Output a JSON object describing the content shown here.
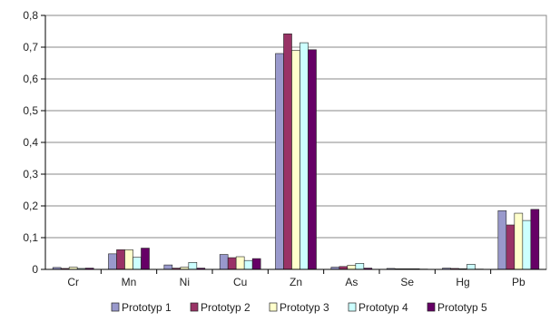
{
  "chart_data": {
    "type": "bar",
    "categories": [
      "Cr",
      "Mn",
      "Ni",
      "Cu",
      "Zn",
      "As",
      "Se",
      "Hg",
      "Pb"
    ],
    "y_ticks": [
      "0",
      "0,1",
      "0,2",
      "0,3",
      "0,4",
      "0,5",
      "0,6",
      "0,7",
      "0,8"
    ],
    "ylim": [
      0,
      0.8
    ],
    "grid": true,
    "legend_position": "bottom",
    "series": [
      {
        "name": "Prototyp 1",
        "color": "#9999cc",
        "values": [
          0.006,
          0.049,
          0.014,
          0.047,
          0.68,
          0.007,
          0.003,
          0.004,
          0.185
        ]
      },
      {
        "name": "Prototyp 2",
        "color": "#993366",
        "values": [
          0.003,
          0.062,
          0.004,
          0.037,
          0.742,
          0.009,
          0.002,
          0.003,
          0.14
        ]
      },
      {
        "name": "Prototyp 3",
        "color": "#ffffcc",
        "values": [
          0.007,
          0.062,
          0.007,
          0.04,
          0.69,
          0.013,
          0.002,
          0.002,
          0.177
        ]
      },
      {
        "name": "Prototyp 4",
        "color": "#ccffff",
        "values": [
          0.003,
          0.038,
          0.022,
          0.028,
          0.714,
          0.019,
          0.002,
          0.016,
          0.154
        ]
      },
      {
        "name": "Prototyp 5",
        "color": "#660066",
        "values": [
          0.004,
          0.067,
          0.004,
          0.034,
          0.692,
          0.004,
          0.001,
          0.001,
          0.189
        ]
      }
    ]
  }
}
